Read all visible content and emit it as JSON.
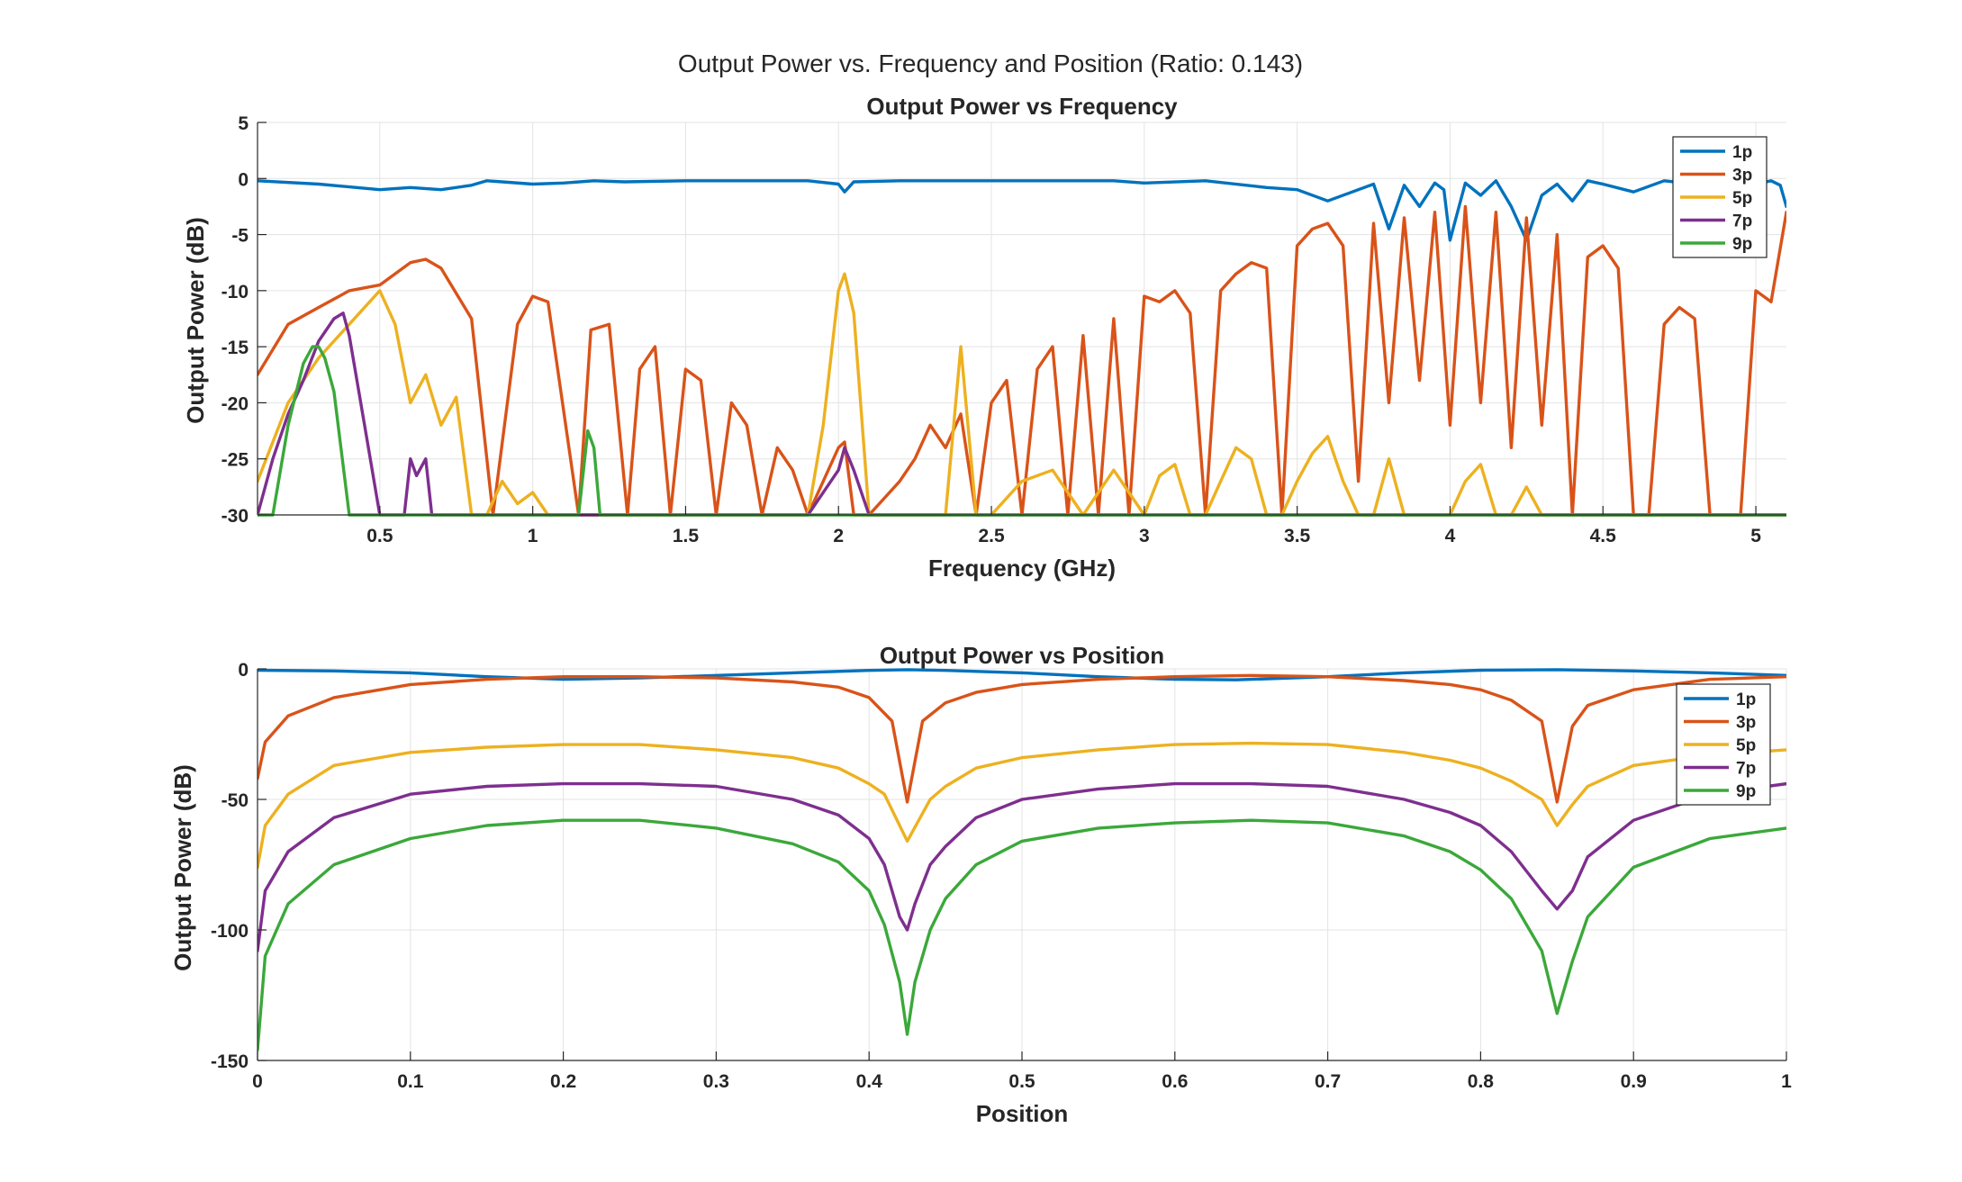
{
  "figure": {
    "suptitle": "Output Power vs. Frequency and Position (Ratio: 0.143)"
  },
  "colors": {
    "1p": "#0072BD",
    "3p": "#D95319",
    "5p": "#EDB120",
    "7p": "#7E2F8E",
    "9p": "#3BA83A"
  },
  "chart_data": [
    {
      "type": "line",
      "title": "Output Power vs Frequency",
      "xlabel": "Frequency (GHz)",
      "ylabel": "Output Power (dB)",
      "xlim": [
        0.1,
        5.1
      ],
      "ylim": [
        -30,
        5
      ],
      "xticks": [
        0.5,
        1,
        1.5,
        2,
        2.5,
        3,
        3.5,
        4,
        4.5,
        5
      ],
      "xtick_labels": [
        "0.5",
        "1",
        "1.5",
        "2",
        "2.5",
        "3",
        "3.5",
        "4",
        "4.5",
        "5"
      ],
      "yticks": [
        5,
        0,
        -5,
        -10,
        -15,
        -20,
        -25,
        -30
      ],
      "ytick_labels": [
        "5",
        "0",
        "-5",
        "-10",
        "-15",
        "-20",
        "-25",
        "-30"
      ],
      "grid": true,
      "legend_position": "top-right",
      "series": [
        {
          "name": "1p",
          "x": [
            0.1,
            0.3,
            0.5,
            0.6,
            0.7,
            0.8,
            0.85,
            0.9,
            1.0,
            1.1,
            1.2,
            1.3,
            1.5,
            1.9,
            2.0,
            2.02,
            2.05,
            2.2,
            2.5,
            2.9,
            3.0,
            3.2,
            3.4,
            3.5,
            3.6,
            3.7,
            3.75,
            3.8,
            3.85,
            3.9,
            3.95,
            3.98,
            4.0,
            4.05,
            4.1,
            4.15,
            4.2,
            4.25,
            4.3,
            4.35,
            4.4,
            4.45,
            4.5,
            4.6,
            4.7,
            4.8,
            4.9,
            5.0,
            5.05,
            5.08,
            5.1
          ],
          "y": [
            -0.2,
            -0.5,
            -1.0,
            -0.8,
            -1.0,
            -0.6,
            -0.2,
            -0.3,
            -0.5,
            -0.4,
            -0.2,
            -0.3,
            -0.2,
            -0.2,
            -0.5,
            -1.2,
            -0.3,
            -0.2,
            -0.2,
            -0.2,
            -0.4,
            -0.2,
            -0.8,
            -1.0,
            -2.0,
            -1.0,
            -0.5,
            -4.5,
            -0.6,
            -2.5,
            -0.4,
            -1.0,
            -5.5,
            -0.4,
            -1.5,
            -0.2,
            -2.5,
            -5.5,
            -1.5,
            -0.5,
            -2.0,
            -0.2,
            -0.5,
            -1.2,
            -0.2,
            -0.5,
            -0.2,
            -0.5,
            -0.2,
            -0.6,
            -2.5
          ]
        },
        {
          "name": "3p",
          "x": [
            0.1,
            0.2,
            0.3,
            0.4,
            0.5,
            0.6,
            0.65,
            0.7,
            0.8,
            0.87,
            0.95,
            1.0,
            1.05,
            1.15,
            1.19,
            1.25,
            1.31,
            1.35,
            1.4,
            1.45,
            1.5,
            1.55,
            1.6,
            1.65,
            1.7,
            1.75,
            1.8,
            1.85,
            1.9,
            1.95,
            2.0,
            2.02,
            2.05,
            2.1,
            2.2,
            2.25,
            2.3,
            2.35,
            2.4,
            2.45,
            2.5,
            2.55,
            2.6,
            2.65,
            2.7,
            2.75,
            2.8,
            2.85,
            2.9,
            2.95,
            3.0,
            3.05,
            3.1,
            3.15,
            3.2,
            3.25,
            3.3,
            3.35,
            3.4,
            3.45,
            3.5,
            3.55,
            3.6,
            3.65,
            3.7,
            3.75,
            3.8,
            3.85,
            3.9,
            3.95,
            4.0,
            4.05,
            4.1,
            4.15,
            4.2,
            4.25,
            4.3,
            4.35,
            4.4,
            4.45,
            4.5,
            4.55,
            4.6,
            4.65,
            4.7,
            4.75,
            4.8,
            4.85,
            4.9,
            4.95,
            5.0,
            5.05,
            5.1
          ],
          "y": [
            -17.5,
            -13.0,
            -11.5,
            -10.0,
            -9.5,
            -7.5,
            -7.2,
            -8.0,
            -12.5,
            -30,
            -13.0,
            -10.5,
            -11.0,
            -30,
            -13.5,
            -13.0,
            -30,
            -17.0,
            -15.0,
            -30,
            -17.0,
            -18.0,
            -30,
            -20.0,
            -22.0,
            -30,
            -24.0,
            -26.0,
            -30,
            -27.0,
            -24.0,
            -23.5,
            -30,
            -30,
            -27.0,
            -25.0,
            -22.0,
            -24.0,
            -21.0,
            -30,
            -20.0,
            -18.0,
            -30,
            -17.0,
            -15.0,
            -30,
            -14.0,
            -30,
            -12.5,
            -30,
            -10.5,
            -11.0,
            -10.0,
            -12.0,
            -30,
            -10.0,
            -8.5,
            -7.5,
            -8.0,
            -30,
            -6.0,
            -4.5,
            -4.0,
            -6.0,
            -27.0,
            -4.0,
            -20.0,
            -3.5,
            -18.0,
            -3.0,
            -22.0,
            -2.5,
            -20.0,
            -3.0,
            -24.0,
            -3.5,
            -22.0,
            -5.0,
            -30,
            -7.0,
            -6.0,
            -8.0,
            -30,
            -30,
            -13.0,
            -11.5,
            -12.5,
            -30,
            -30,
            -30,
            -10.0,
            -11.0,
            -3.0
          ]
        },
        {
          "name": "5p",
          "x": [
            0.1,
            0.2,
            0.3,
            0.4,
            0.5,
            0.55,
            0.6,
            0.65,
            0.7,
            0.75,
            0.8,
            0.85,
            0.9,
            0.95,
            1.0,
            1.05,
            1.1,
            1.5,
            1.9,
            1.95,
            2.0,
            2.02,
            2.05,
            2.1,
            2.2,
            2.35,
            2.4,
            2.45,
            2.5,
            2.6,
            2.7,
            2.8,
            2.9,
            3.0,
            3.05,
            3.1,
            3.15,
            3.2,
            3.25,
            3.3,
            3.35,
            3.4,
            3.45,
            3.5,
            3.55,
            3.6,
            3.65,
            3.7,
            3.75,
            3.8,
            3.85,
            3.9,
            4.0,
            4.05,
            4.1,
            4.15,
            4.2,
            4.25,
            4.3,
            4.4,
            4.5,
            4.6,
            4.7,
            4.8,
            4.9,
            5.0,
            5.1
          ],
          "y": [
            -27.0,
            -20.0,
            -16.0,
            -13.0,
            -10.0,
            -13.0,
            -20.0,
            -17.5,
            -22.0,
            -19.5,
            -30,
            -30,
            -27.0,
            -29.0,
            -28.0,
            -30,
            -30,
            -30,
            -30,
            -22.0,
            -10.0,
            -8.5,
            -12.0,
            -30,
            -30,
            -30,
            -15.0,
            -30,
            -30,
            -27.0,
            -26.0,
            -30,
            -26.0,
            -30,
            -26.5,
            -25.5,
            -30,
            -30,
            -27.0,
            -24.0,
            -25.0,
            -30,
            -30,
            -27.0,
            -24.5,
            -23.0,
            -27.0,
            -30,
            -30,
            -25.0,
            -30,
            -30,
            -30,
            -27.0,
            -25.5,
            -30,
            -30,
            -27.5,
            -30,
            -30,
            -30,
            -30,
            -30,
            -30,
            -30,
            -30,
            -30
          ]
        },
        {
          "name": "7p",
          "x": [
            0.1,
            0.15,
            0.2,
            0.25,
            0.3,
            0.35,
            0.38,
            0.4,
            0.45,
            0.5,
            0.55,
            0.58,
            0.6,
            0.62,
            0.65,
            0.67,
            1.0,
            1.5,
            1.9,
            2.0,
            2.02,
            2.05,
            2.1,
            2.5,
            3.0,
            4.0,
            5.1
          ],
          "y": [
            -30,
            -25.0,
            -21.0,
            -18.0,
            -14.5,
            -12.5,
            -12.0,
            -14.0,
            -22.0,
            -30,
            -30,
            -30,
            -25.0,
            -26.5,
            -25.0,
            -30,
            -30,
            -30,
            -30,
            -26.0,
            -24.0,
            -26.0,
            -30,
            -30,
            -30,
            -30,
            -30
          ]
        },
        {
          "name": "9p",
          "x": [
            0.1,
            0.15,
            0.2,
            0.25,
            0.28,
            0.3,
            0.32,
            0.35,
            0.4,
            0.45,
            0.6,
            1.0,
            1.15,
            1.18,
            1.2,
            1.22,
            1.25,
            1.5,
            2.0,
            3.0,
            4.0,
            5.1
          ],
          "y": [
            -30,
            -30,
            -22.0,
            -16.5,
            -15.0,
            -15.0,
            -16.0,
            -19.0,
            -30,
            -30,
            -30,
            -30,
            -30,
            -22.5,
            -24.0,
            -30,
            -30,
            -30,
            -30,
            -30,
            -30,
            -30
          ]
        }
      ]
    },
    {
      "type": "line",
      "title": "Output Power vs Position",
      "xlabel": "Position",
      "ylabel": "Output Power (dB)",
      "xlim": [
        0,
        1
      ],
      "ylim": [
        -150,
        0
      ],
      "xticks": [
        0,
        0.1,
        0.2,
        0.3,
        0.4,
        0.5,
        0.6,
        0.7,
        0.8,
        0.9,
        1
      ],
      "xtick_labels": [
        "0",
        "0.1",
        "0.2",
        "0.3",
        "0.4",
        "0.5",
        "0.6",
        "0.7",
        "0.8",
        "0.9",
        "1"
      ],
      "yticks": [
        0,
        -50,
        -100,
        -150
      ],
      "ytick_labels": [
        "0",
        "-50",
        "-100",
        "-150"
      ],
      "grid": true,
      "legend_position": "top-right",
      "series": [
        {
          "name": "1p",
          "x": [
            0,
            0.05,
            0.1,
            0.15,
            0.2,
            0.25,
            0.3,
            0.35,
            0.4,
            0.425,
            0.45,
            0.5,
            0.55,
            0.6,
            0.64,
            0.7,
            0.75,
            0.8,
            0.85,
            0.9,
            0.95,
            1.0
          ],
          "y": [
            -0.5,
            -0.8,
            -1.5,
            -3.0,
            -4.0,
            -3.5,
            -2.5,
            -1.5,
            -0.6,
            -0.3,
            -0.6,
            -1.5,
            -3.0,
            -4.0,
            -4.2,
            -3.0,
            -1.5,
            -0.5,
            -0.3,
            -0.8,
            -1.5,
            -2.5
          ]
        },
        {
          "name": "3p",
          "x": [
            0,
            0.005,
            0.02,
            0.05,
            0.1,
            0.15,
            0.2,
            0.25,
            0.3,
            0.35,
            0.38,
            0.4,
            0.415,
            0.425,
            0.435,
            0.45,
            0.47,
            0.5,
            0.55,
            0.6,
            0.65,
            0.7,
            0.75,
            0.78,
            0.8,
            0.82,
            0.84,
            0.85,
            0.86,
            0.87,
            0.9,
            0.95,
            1.0
          ],
          "y": [
            -42.0,
            -28.0,
            -18.0,
            -11.0,
            -6.0,
            -4.0,
            -3.0,
            -3.0,
            -3.5,
            -5.0,
            -7.0,
            -11.0,
            -20.0,
            -51.0,
            -20.0,
            -13.0,
            -9.0,
            -6.0,
            -4.0,
            -3.0,
            -2.5,
            -3.0,
            -4.5,
            -6.0,
            -8.0,
            -12.0,
            -20.0,
            -51.0,
            -22.0,
            -14.0,
            -8.0,
            -4.0,
            -3.0
          ]
        },
        {
          "name": "5p",
          "x": [
            0,
            0.005,
            0.02,
            0.05,
            0.1,
            0.15,
            0.2,
            0.25,
            0.3,
            0.35,
            0.38,
            0.4,
            0.41,
            0.425,
            0.44,
            0.45,
            0.47,
            0.5,
            0.55,
            0.6,
            0.65,
            0.7,
            0.75,
            0.78,
            0.8,
            0.82,
            0.84,
            0.85,
            0.86,
            0.87,
            0.9,
            0.95,
            1.0
          ],
          "y": [
            -76.0,
            -60.0,
            -48.0,
            -37.0,
            -32.0,
            -30.0,
            -29.0,
            -29.0,
            -31.0,
            -34.0,
            -38.0,
            -44.0,
            -48.0,
            -66.0,
            -50.0,
            -45.0,
            -38.0,
            -34.0,
            -31.0,
            -29.0,
            -28.5,
            -29.0,
            -32.0,
            -35.0,
            -38.0,
            -43.0,
            -50.0,
            -60.0,
            -52.0,
            -45.0,
            -37.0,
            -33.0,
            -31.0
          ]
        },
        {
          "name": "7p",
          "x": [
            0,
            0.005,
            0.02,
            0.05,
            0.1,
            0.15,
            0.2,
            0.25,
            0.3,
            0.35,
            0.38,
            0.4,
            0.41,
            0.42,
            0.425,
            0.43,
            0.44,
            0.45,
            0.47,
            0.5,
            0.55,
            0.6,
            0.65,
            0.7,
            0.75,
            0.78,
            0.8,
            0.82,
            0.84,
            0.85,
            0.86,
            0.87,
            0.9,
            0.95,
            1.0
          ],
          "y": [
            -108.0,
            -85.0,
            -70.0,
            -57.0,
            -48.0,
            -45.0,
            -44.0,
            -44.0,
            -45.0,
            -50.0,
            -56.0,
            -65.0,
            -75.0,
            -95.0,
            -100.0,
            -90.0,
            -75.0,
            -68.0,
            -57.0,
            -50.0,
            -46.0,
            -44.0,
            -44.0,
            -45.0,
            -50.0,
            -55.0,
            -60.0,
            -70.0,
            -85.0,
            -92.0,
            -85.0,
            -72.0,
            -58.0,
            -48.0,
            -44.0
          ]
        },
        {
          "name": "9p",
          "x": [
            0,
            0.005,
            0.02,
            0.05,
            0.1,
            0.15,
            0.2,
            0.25,
            0.3,
            0.35,
            0.38,
            0.4,
            0.41,
            0.42,
            0.425,
            0.43,
            0.44,
            0.45,
            0.47,
            0.5,
            0.55,
            0.6,
            0.65,
            0.7,
            0.75,
            0.78,
            0.8,
            0.82,
            0.84,
            0.85,
            0.86,
            0.87,
            0.9,
            0.95,
            1.0
          ],
          "y": [
            -146.0,
            -110.0,
            -90.0,
            -75.0,
            -65.0,
            -60.0,
            -58.0,
            -58.0,
            -61.0,
            -67.0,
            -74.0,
            -85.0,
            -98.0,
            -120.0,
            -140.0,
            -120.0,
            -100.0,
            -88.0,
            -75.0,
            -66.0,
            -61.0,
            -59.0,
            -58.0,
            -59.0,
            -64.0,
            -70.0,
            -77.0,
            -88.0,
            -108.0,
            -132.0,
            -112.0,
            -95.0,
            -76.0,
            -65.0,
            -61.0
          ]
        }
      ]
    }
  ]
}
